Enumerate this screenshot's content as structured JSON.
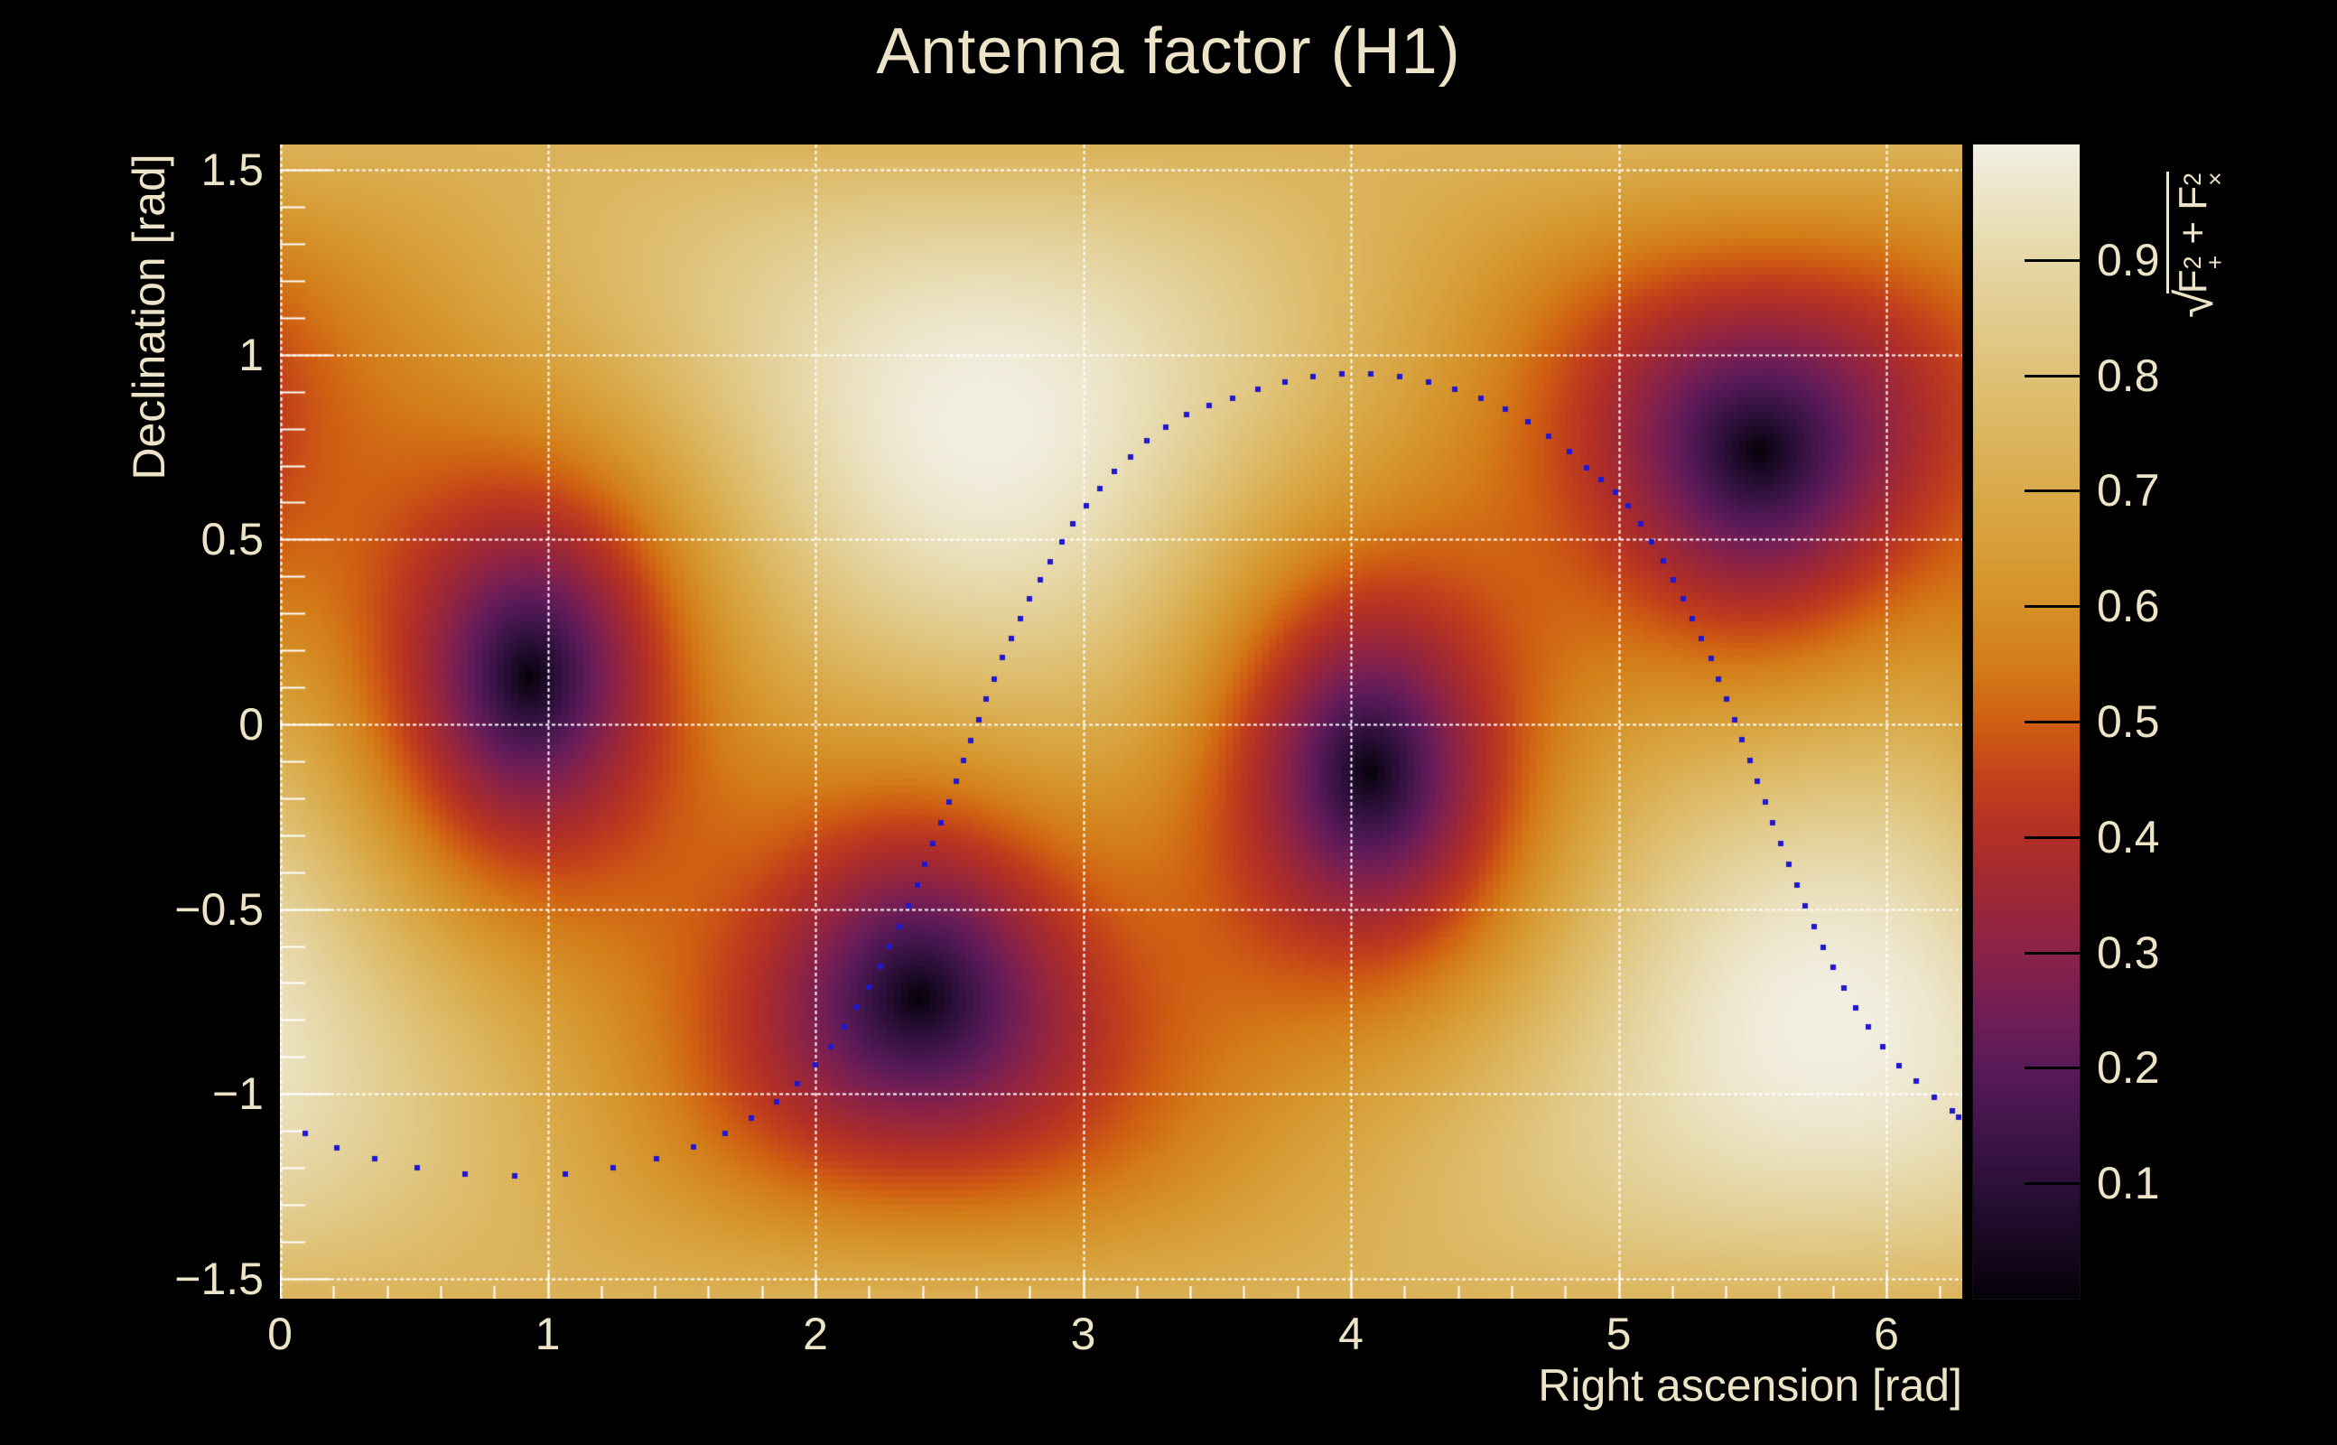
{
  "title": "Antenna factor (H1)",
  "theme": {
    "background": "#000000",
    "text_color": "#ede4c8",
    "grid_color": "#ffffff",
    "tick_color": "#ffffff",
    "marker_color": "#2018cf"
  },
  "axes": {
    "x": {
      "label": "Right ascension [rad]",
      "range": [
        0,
        6.2832
      ],
      "major_ticks": [
        0,
        1,
        2,
        3,
        4,
        5,
        6
      ],
      "tick_labels": [
        "0",
        "1",
        "2",
        "3",
        "4",
        "5",
        "6"
      ],
      "minor_step": 0.2,
      "gridlines": true
    },
    "y": {
      "label": "Declination [rad]",
      "range": [
        -1.5708,
        1.5708
      ],
      "major_ticks": [
        1.5,
        1,
        0.5,
        0,
        -0.5,
        -1,
        -1.5
      ],
      "tick_labels": [
        "1.5",
        "1",
        "0.5",
        "0",
        "−0.5",
        "−1",
        "−1.5"
      ],
      "minor_step": 0.1,
      "gridlines": true
    }
  },
  "colorbar": {
    "range": [
      0,
      1
    ],
    "tick_values": [
      0.9,
      0.8,
      0.7,
      0.6,
      0.5,
      0.4,
      0.3,
      0.2,
      0.1
    ],
    "tick_labels": [
      "0.9",
      "0.8",
      "0.7",
      "0.6",
      "0.5",
      "0.4",
      "0.3",
      "0.2",
      "0.1"
    ],
    "title": {
      "radical": "√",
      "f1": "F",
      "f1_sup": "2",
      "f1_sub": "+",
      "plus": " + ",
      "f2": "F",
      "f2_sup": "2",
      "f2_sub": "×"
    }
  },
  "chart_data": {
    "type": "heatmap",
    "title": "Antenna factor (H1)",
    "xlabel": "Right ascension [rad]",
    "ylabel": "Declination [rad]",
    "x_range": [
      0,
      6.2832
    ],
    "y_range": [
      -1.5708,
      1.5708
    ],
    "value_label": "sqrt(F+^2 + Fx^2)",
    "value_range": [
      0,
      1
    ],
    "description": "Antenna pattern magnitude sqrt(Fplus^2 + Fcross^2) of the LIGO Hanford (H1) detector over the sky, with a dotted overlay track; four nulls (dark spots) lie on the detector horizon, maxima (white) at zenith/nadir.",
    "detector": {
      "name": "H1",
      "zenith_ra": 2.64,
      "zenith_dec": 0.815,
      "null_ra": 0.92,
      "null_dec": 0.115
    },
    "pattern_nulls": [
      [
        0.92,
        0.12
      ],
      [
        2.39,
        -0.74
      ],
      [
        4.06,
        -0.11
      ],
      [
        5.53,
        0.75
      ]
    ],
    "pattern_maxima": [
      [
        2.64,
        0.815
      ],
      [
        5.78,
        -0.815
      ]
    ],
    "grid_bins": [
      233,
      160
    ],
    "palette": [
      [
        0.0,
        "#060108"
      ],
      [
        0.05,
        "#190822"
      ],
      [
        0.1,
        "#2c0f3a"
      ],
      [
        0.15,
        "#42154b"
      ],
      [
        0.2,
        "#591a58"
      ],
      [
        0.25,
        "#721e55"
      ],
      [
        0.3,
        "#8a2247"
      ],
      [
        0.35,
        "#9e2836"
      ],
      [
        0.4,
        "#b12f26"
      ],
      [
        0.45,
        "#c2401b"
      ],
      [
        0.5,
        "#d05f12"
      ],
      [
        0.55,
        "#d37d19"
      ],
      [
        0.6,
        "#d58f27"
      ],
      [
        0.65,
        "#d79e38"
      ],
      [
        0.7,
        "#d9aa4a"
      ],
      [
        0.75,
        "#dcb660"
      ],
      [
        0.8,
        "#dfc176"
      ],
      [
        0.85,
        "#e2cc8e"
      ],
      [
        0.9,
        "#e6d7a7"
      ],
      [
        0.95,
        "#ece3c4"
      ],
      [
        1.0,
        "#f2efe3"
      ]
    ],
    "overlay_curve": {
      "type": "scatter",
      "marker": "square",
      "marker_size": 6,
      "color": "#2018cf",
      "points": [
        [
          0.095,
          -1.108
        ],
        [
          0.212,
          -1.147
        ],
        [
          0.354,
          -1.176
        ],
        [
          0.513,
          -1.2
        ],
        [
          0.691,
          -1.218
        ],
        [
          0.877,
          -1.223
        ],
        [
          1.066,
          -1.218
        ],
        [
          1.245,
          -1.201
        ],
        [
          1.406,
          -1.176
        ],
        [
          1.545,
          -1.144
        ],
        [
          1.663,
          -1.108
        ],
        [
          1.762,
          -1.066
        ],
        [
          1.855,
          -1.022
        ],
        [
          1.932,
          -0.973
        ],
        [
          2.0,
          -0.922
        ],
        [
          2.057,
          -0.873
        ],
        [
          2.108,
          -0.819
        ],
        [
          2.155,
          -0.765
        ],
        [
          2.199,
          -0.711
        ],
        [
          2.243,
          -0.656
        ],
        [
          2.277,
          -0.601
        ],
        [
          2.314,
          -0.548
        ],
        [
          2.347,
          -0.491
        ],
        [
          2.381,
          -0.435
        ],
        [
          2.408,
          -0.379
        ],
        [
          2.438,
          -0.323
        ],
        [
          2.468,
          -0.266
        ],
        [
          2.499,
          -0.21
        ],
        [
          2.526,
          -0.154
        ],
        [
          2.553,
          -0.098
        ],
        [
          2.58,
          -0.044
        ],
        [
          2.61,
          0.012
        ],
        [
          2.637,
          0.068
        ],
        [
          2.668,
          0.122
        ],
        [
          2.698,
          0.181
        ],
        [
          2.732,
          0.232
        ],
        [
          2.766,
          0.286
        ],
        [
          2.799,
          0.34
        ],
        [
          2.84,
          0.391
        ],
        [
          2.877,
          0.44
        ],
        [
          2.921,
          0.494
        ],
        [
          2.961,
          0.543
        ],
        [
          3.012,
          0.592
        ],
        [
          3.063,
          0.638
        ],
        [
          3.117,
          0.684
        ],
        [
          3.177,
          0.724
        ],
        [
          3.238,
          0.768
        ],
        [
          3.309,
          0.805
        ],
        [
          3.385,
          0.838
        ],
        [
          3.47,
          0.862
        ],
        [
          3.559,
          0.882
        ],
        [
          3.653,
          0.906
        ],
        [
          3.754,
          0.925
        ],
        [
          3.858,
          0.94
        ],
        [
          3.966,
          0.949
        ],
        [
          4.074,
          0.947
        ],
        [
          4.182,
          0.94
        ],
        [
          4.29,
          0.925
        ],
        [
          4.388,
          0.906
        ],
        [
          4.485,
          0.882
        ],
        [
          4.575,
          0.852
        ],
        [
          4.66,
          0.818
        ],
        [
          4.74,
          0.78
        ],
        [
          4.815,
          0.738
        ],
        [
          4.88,
          0.695
        ],
        [
          4.935,
          0.663
        ],
        [
          4.988,
          0.628
        ],
        [
          5.036,
          0.591
        ],
        [
          5.082,
          0.543
        ],
        [
          5.124,
          0.494
        ],
        [
          5.167,
          0.443
        ],
        [
          5.205,
          0.391
        ],
        [
          5.24,
          0.34
        ],
        [
          5.275,
          0.287
        ],
        [
          5.309,
          0.232
        ],
        [
          5.346,
          0.178
        ],
        [
          5.373,
          0.122
        ],
        [
          5.403,
          0.068
        ],
        [
          5.434,
          0.012
        ],
        [
          5.461,
          -0.042
        ],
        [
          5.491,
          -0.098
        ],
        [
          5.518,
          -0.154
        ],
        [
          5.548,
          -0.21
        ],
        [
          5.575,
          -0.267
        ],
        [
          5.606,
          -0.323
        ],
        [
          5.636,
          -0.379
        ],
        [
          5.667,
          -0.435
        ],
        [
          5.697,
          -0.491
        ],
        [
          5.731,
          -0.548
        ],
        [
          5.764,
          -0.604
        ],
        [
          5.802,
          -0.658
        ],
        [
          5.842,
          -0.714
        ],
        [
          5.886,
          -0.768
        ],
        [
          5.933,
          -0.819
        ],
        [
          5.987,
          -0.873
        ],
        [
          6.048,
          -0.924
        ],
        [
          6.112,
          -0.966
        ],
        [
          6.18,
          -1.01
        ],
        [
          6.245,
          -1.046
        ],
        [
          6.27,
          -1.064
        ]
      ]
    }
  }
}
